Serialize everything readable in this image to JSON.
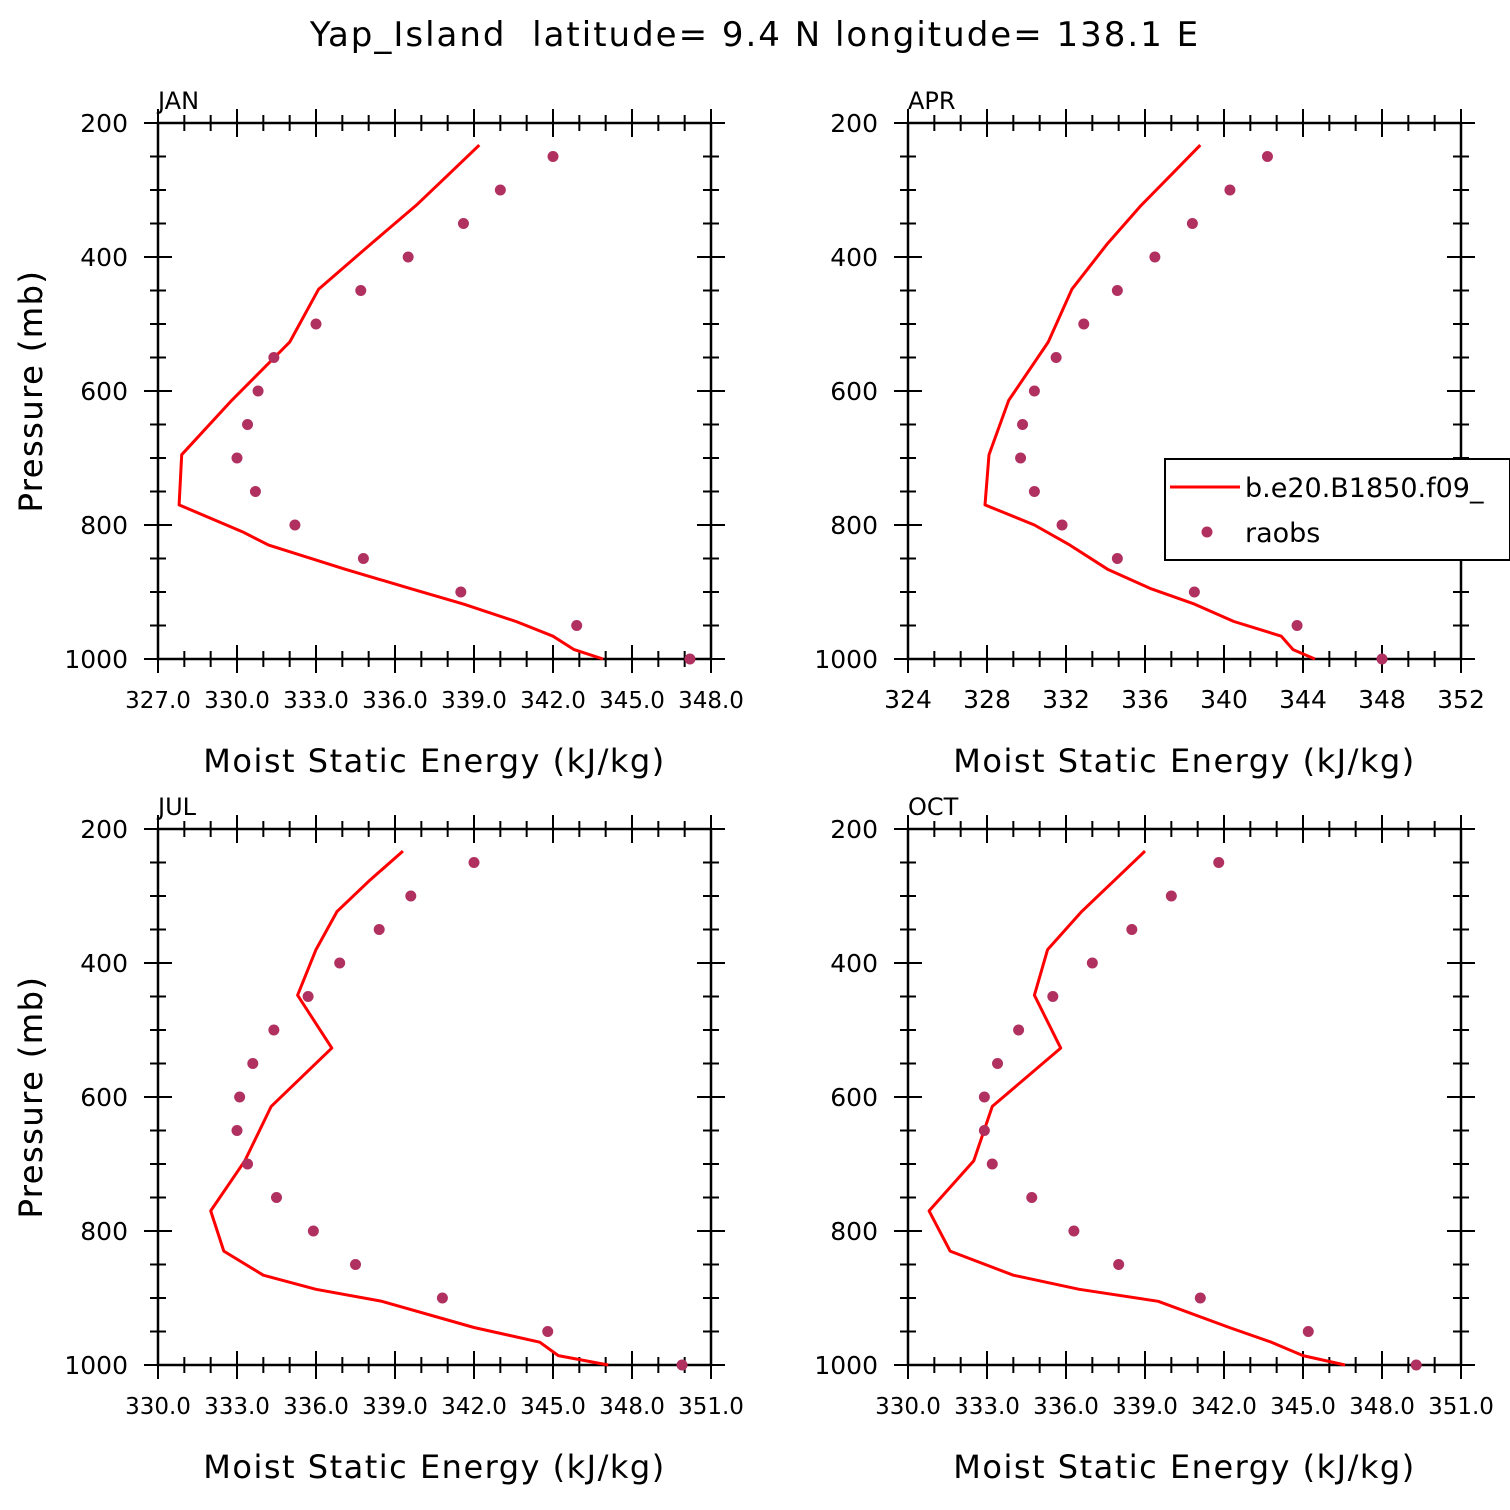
{
  "title": "Yap_Island  latitude= 9.4 N longitude= 138.1 E",
  "legend": {
    "model": "b.e20.B1850.f09_",
    "obs": "raobs"
  },
  "colors": {
    "model_line": "#ff0000",
    "obs_marker": "#b03060"
  },
  "chart_data": [
    {
      "type": "line",
      "panel": "JAN",
      "title": "JAN",
      "xlabel": "Moist Static Energy (kJ/kg)",
      "ylabel": "Pressure (mb)",
      "xlim": [
        327,
        348
      ],
      "ylim": [
        1000,
        200
      ],
      "y_inverted": true,
      "xticks": [
        327,
        330,
        333,
        336,
        339,
        342,
        345,
        348
      ],
      "xtick_labels": [
        "327.0",
        "330.0",
        "333.0",
        "336.0",
        "339.0",
        "342.0",
        "345.0",
        "348.0"
      ],
      "yticks": [
        200,
        400,
        600,
        800,
        1000
      ],
      "ytick_labels": [
        "200",
        "400",
        "600",
        "800",
        "1000"
      ],
      "legend_shown": false,
      "series": [
        {
          "name": "b.e20.B1850.f09_",
          "style": "line",
          "x": [
            339.2,
            338.0,
            336.8,
            335.1,
            333.1,
            332.0,
            329.8,
            327.9,
            327.8,
            330.2,
            331.2,
            334.1,
            336.6,
            338.6,
            340.6,
            342.0,
            342.8,
            343.9
          ],
          "y": [
            233,
            278,
            323,
            380,
            448,
            527,
            614,
            695,
            770,
            810,
            830,
            866,
            895,
            918,
            944,
            966,
            986,
            1000
          ]
        },
        {
          "name": "raobs",
          "style": "markers",
          "x": [
            342.0,
            340.0,
            338.6,
            336.5,
            334.7,
            333.0,
            331.4,
            330.8,
            330.4,
            330.0,
            330.7,
            332.2,
            334.8,
            338.5,
            342.9,
            347.2
          ],
          "y": [
            250,
            300,
            350,
            400,
            450,
            500,
            550,
            600,
            650,
            700,
            750,
            800,
            850,
            900,
            950,
            1000
          ]
        }
      ]
    },
    {
      "type": "line",
      "panel": "APR",
      "title": "APR",
      "xlabel": "Moist Static Energy (kJ/kg)",
      "ylabel": "Pressure (mb)",
      "xlim": [
        324,
        352
      ],
      "ylim": [
        1000,
        200
      ],
      "y_inverted": true,
      "xticks": [
        324,
        328,
        332,
        336,
        340,
        344,
        348,
        352
      ],
      "xtick_labels": [
        "324",
        "328",
        "332",
        "336",
        "340",
        "344",
        "348",
        "352"
      ],
      "yticks": [
        200,
        400,
        600,
        800,
        1000
      ],
      "ytick_labels": [
        "200",
        "400",
        "600",
        "800",
        "1000"
      ],
      "legend_shown": true,
      "legend_position": "right",
      "series": [
        {
          "name": "b.e20.B1850.f09_",
          "style": "line",
          "x": [
            338.8,
            337.3,
            335.8,
            334.1,
            332.3,
            331.1,
            329.1,
            328.1,
            327.9,
            330.4,
            332.2,
            334.1,
            336.3,
            338.5,
            340.5,
            341.7,
            342.9,
            343.5,
            344.6
          ],
          "y": [
            233,
            278,
            323,
            380,
            448,
            527,
            614,
            695,
            770,
            800,
            830,
            866,
            895,
            918,
            944,
            955,
            966,
            986,
            1000
          ]
        },
        {
          "name": "raobs",
          "style": "markers",
          "x": [
            342.2,
            340.3,
            338.4,
            336.5,
            334.6,
            332.9,
            331.5,
            330.4,
            329.8,
            329.7,
            330.4,
            331.8,
            334.6,
            338.5,
            343.7,
            348.0
          ],
          "y": [
            250,
            300,
            350,
            400,
            450,
            500,
            550,
            600,
            650,
            700,
            750,
            800,
            850,
            900,
            950,
            1000
          ]
        }
      ]
    },
    {
      "type": "line",
      "panel": "JUL",
      "title": "JUL",
      "xlabel": "Moist Static Energy (kJ/kg)",
      "ylabel": "Pressure (mb)",
      "xlim": [
        330,
        351
      ],
      "ylim": [
        1000,
        200
      ],
      "y_inverted": true,
      "xticks": [
        330,
        333,
        336,
        339,
        342,
        345,
        348,
        351
      ],
      "xtick_labels": [
        "330.0",
        "333.0",
        "336.0",
        "339.0",
        "342.0",
        "345.0",
        "348.0",
        "351.0"
      ],
      "yticks": [
        200,
        400,
        600,
        800,
        1000
      ],
      "ytick_labels": [
        "200",
        "400",
        "600",
        "800",
        "1000"
      ],
      "legend_shown": false,
      "series": [
        {
          "name": "b.e20.B1850.f09_",
          "style": "line",
          "x": [
            339.3,
            338.0,
            336.8,
            336.0,
            335.3,
            336.6,
            334.3,
            333.3,
            332.0,
            332.5,
            334.0,
            336.0,
            338.5,
            342.0,
            344.5,
            345.2,
            347.1
          ],
          "y": [
            233,
            278,
            323,
            380,
            448,
            527,
            614,
            695,
            770,
            830,
            866,
            887,
            905,
            944,
            966,
            986,
            1000
          ]
        },
        {
          "name": "raobs",
          "style": "markers",
          "x": [
            342.0,
            339.6,
            338.4,
            336.9,
            335.7,
            334.4,
            333.6,
            333.1,
            333.0,
            333.4,
            334.5,
            335.9,
            337.5,
            340.8,
            344.8,
            349.9
          ],
          "y": [
            250,
            300,
            350,
            400,
            450,
            500,
            550,
            600,
            650,
            700,
            750,
            800,
            850,
            900,
            950,
            1000
          ]
        }
      ]
    },
    {
      "type": "line",
      "panel": "OCT",
      "title": "OCT",
      "xlabel": "Moist Static Energy (kJ/kg)",
      "ylabel": "Pressure (mb)",
      "xlim": [
        330,
        351
      ],
      "ylim": [
        1000,
        200
      ],
      "y_inverted": true,
      "xticks": [
        330,
        333,
        336,
        339,
        342,
        345,
        348,
        351
      ],
      "xtick_labels": [
        "330.0",
        "333.0",
        "336.0",
        "339.0",
        "342.0",
        "345.0",
        "348.0",
        "351.0"
      ],
      "yticks": [
        200,
        400,
        600,
        800,
        1000
      ],
      "ytick_labels": [
        "200",
        "400",
        "600",
        "800",
        "1000"
      ],
      "legend_shown": false,
      "series": [
        {
          "name": "b.e20.B1850.f09_",
          "style": "line",
          "x": [
            339.0,
            337.8,
            336.6,
            335.3,
            334.8,
            335.8,
            333.2,
            332.5,
            330.8,
            331.6,
            334.0,
            336.5,
            339.5,
            342.2,
            343.8,
            345.0,
            346.6
          ],
          "y": [
            233,
            278,
            323,
            380,
            448,
            527,
            614,
            695,
            770,
            830,
            866,
            887,
            905,
            944,
            966,
            986,
            1000
          ]
        },
        {
          "name": "raobs",
          "style": "markers",
          "x": [
            341.8,
            340.0,
            338.5,
            337.0,
            335.5,
            334.2,
            333.4,
            332.9,
            332.9,
            333.2,
            334.7,
            336.3,
            338.0,
            341.1,
            345.2,
            349.3
          ],
          "y": [
            250,
            300,
            350,
            400,
            450,
            500,
            550,
            600,
            650,
            700,
            750,
            800,
            850,
            900,
            950,
            1000
          ]
        }
      ]
    }
  ]
}
